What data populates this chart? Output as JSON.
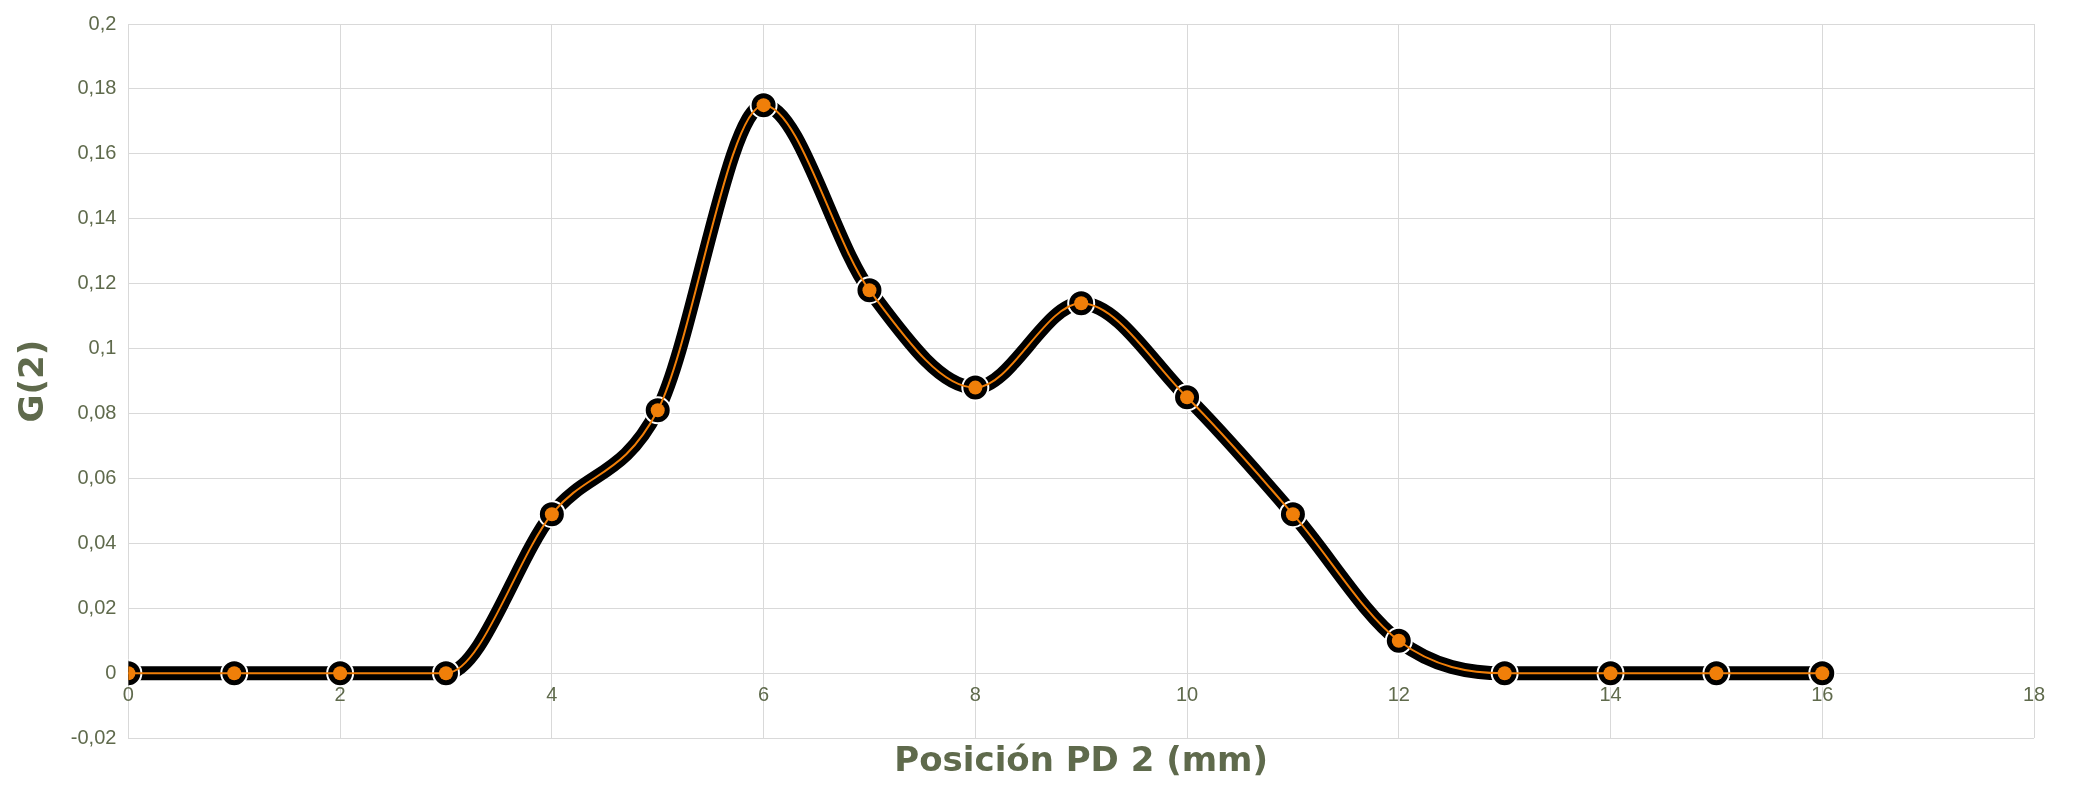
{
  "chart_data": {
    "type": "line",
    "xlabel": "Posición PD 2 (mm)",
    "ylabel": "G(2)",
    "x": [
      0,
      1,
      2,
      3,
      4,
      5,
      6,
      7,
      8,
      9,
      10,
      11,
      12,
      13,
      14,
      15,
      16
    ],
    "series": [
      {
        "color": "#000000",
        "marker": "circle",
        "values": [
          0,
          0,
          0,
          0,
          0.049,
          0.081,
          0.175,
          0.118,
          0.088,
          0.114,
          0.085,
          0.049,
          0.01,
          0,
          0,
          0,
          0
        ]
      },
      {
        "color": "#f07f09",
        "marker": "circle",
        "values": [
          0,
          0,
          0,
          0,
          0.049,
          0.081,
          0.175,
          0.118,
          0.088,
          0.114,
          0.085,
          0.049,
          0.01,
          0,
          0,
          0,
          0
        ]
      }
    ],
    "xlim": [
      0,
      18
    ],
    "xticks": [
      0,
      2,
      4,
      6,
      8,
      10,
      12,
      14,
      16,
      18
    ],
    "ylim": [
      -0.02,
      0.2
    ],
    "yticks": [
      {
        "value": -0.02,
        "label": "-0,02"
      },
      {
        "value": 0,
        "label": "0"
      },
      {
        "value": 0.02,
        "label": "0,02"
      },
      {
        "value": 0.04,
        "label": "0,04"
      },
      {
        "value": 0.06,
        "label": "0,06"
      },
      {
        "value": 0.08,
        "label": "0,08"
      },
      {
        "value": 0.1,
        "label": "0,1"
      },
      {
        "value": 0.12,
        "label": "0,12"
      },
      {
        "value": 0.14,
        "label": "0,14"
      },
      {
        "value": 0.16,
        "label": "0,16"
      },
      {
        "value": 0.18,
        "label": "0,18"
      },
      {
        "value": 0.2,
        "label": "0,2"
      }
    ],
    "grid": true,
    "legend": false
  }
}
